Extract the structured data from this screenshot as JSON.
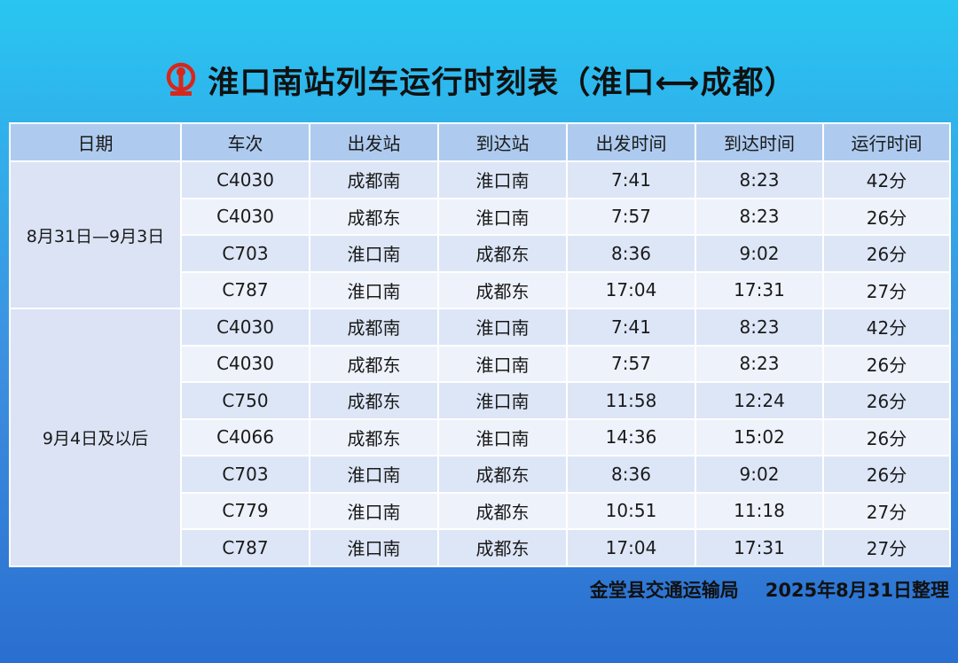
{
  "title": "淮口南站列车运行时刻表（淮口⟷成都）",
  "headers": [
    "日期",
    "车次",
    "出发站",
    "到达站",
    "出发时间",
    "到达时间",
    "运行时间"
  ],
  "groups": [
    {
      "date": "8月31日—9月3日",
      "rows": [
        [
          "C4030",
          "成都南",
          "淮口南",
          "7:41",
          "8:23",
          "42分"
        ],
        [
          "C4030",
          "成都东",
          "淮口南",
          "7:57",
          "8:23",
          "26分"
        ],
        [
          "C703",
          "淮口南",
          "成都东",
          "8:36",
          "9:02",
          "26分"
        ],
        [
          "C787",
          "淮口南",
          "成都东",
          "17:04",
          "17:31",
          "27分"
        ]
      ]
    },
    {
      "date": "9月4日及以后",
      "rows": [
        [
          "C4030",
          "成都南",
          "淮口南",
          "7:41",
          "8:23",
          "42分"
        ],
        [
          "C4030",
          "成都东",
          "淮口南",
          "7:57",
          "8:23",
          "26分"
        ],
        [
          "C750",
          "成都东",
          "淮口南",
          "11:58",
          "12:24",
          "26分"
        ],
        [
          "C4066",
          "成都东",
          "淮口南",
          "14:36",
          "15:02",
          "26分"
        ],
        [
          "C703",
          "淮口南",
          "成都东",
          "8:36",
          "9:02",
          "26分"
        ],
        [
          "C779",
          "淮口南",
          "成都东",
          "10:51",
          "11:18",
          "27分"
        ],
        [
          "C787",
          "淮口南",
          "成都东",
          "17:04",
          "17:31",
          "27分"
        ]
      ]
    }
  ],
  "footer": {
    "org": "金堂县交通运输局",
    "date": "2025年8月31日整理"
  },
  "colors": {
    "logo": "#d9261c",
    "header_bg": "#aecbef"
  },
  "icons": {
    "logo": "china-railway-logo-icon"
  }
}
